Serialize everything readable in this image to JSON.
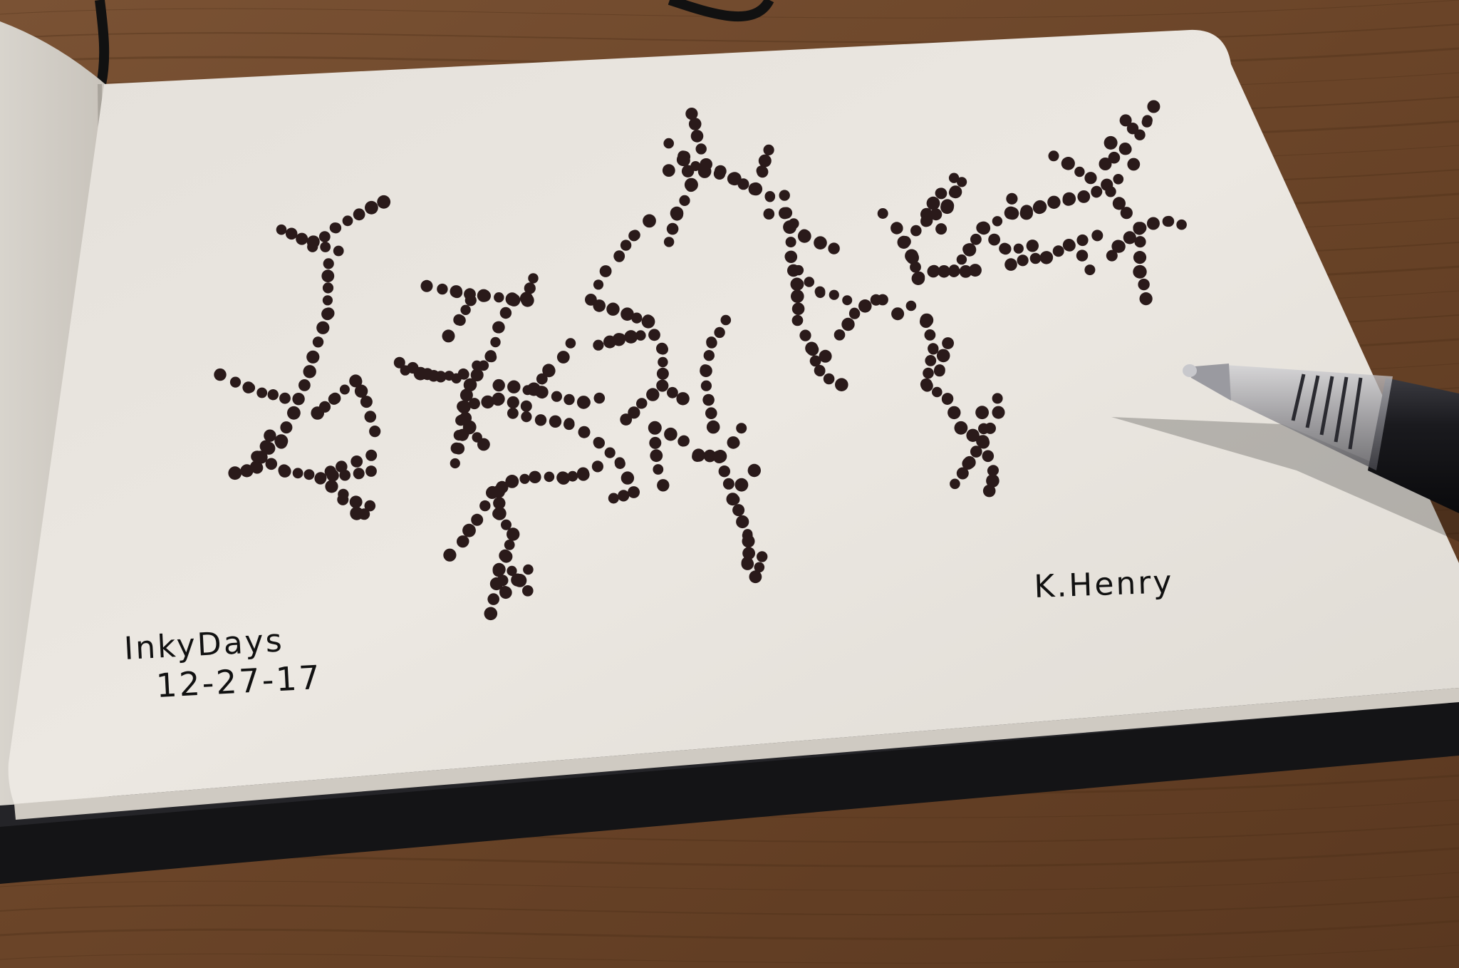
{
  "photo": {
    "subject": "",
    "colors": {
      "table": "#6e4a30",
      "table_dark": "#3f2818",
      "page": "#eae6df",
      "ink": "#2a1a1a",
      "cover": "#1b1b1d",
      "pen_body": "#16161a"
    }
  },
  "sketch": {
    "title_line": "InkyDays",
    "date_line": "12-27-17",
    "signature": "K.Henry"
  }
}
